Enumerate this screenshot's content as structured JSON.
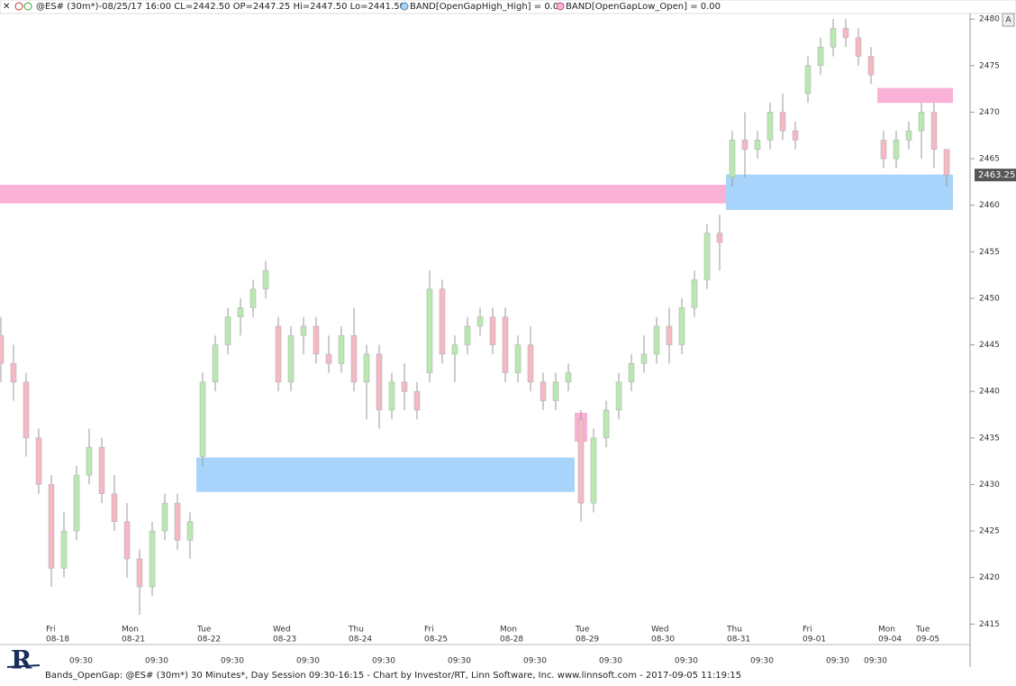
{
  "header": {
    "symbol": "@ES# (30m*)-08/25/17 16:00 CL=2442.50 OP=2447.25 Hi=2447.50 Lo=2441.50",
    "band_high": "BAND[OpenGapHigh_High] = 0.00",
    "band_low": "BAND[OpenGapLow_Open] = 0.00"
  },
  "axis_button": "A",
  "footer": "Bands_OpenGap: @ES# (30m*) 30 Minutes*, Day Session 09:30-16:15 - Chart by Investor/RT, Linn Software, Inc. www.linnsoft.com - 2017-09-05 11:19:15",
  "chart_data": {
    "type": "candlestick",
    "categories": [
      null,
      null,
      null,
      null,
      "08-18",
      null,
      null,
      null,
      null,
      null,
      "08-21",
      null,
      null,
      null,
      null,
      null,
      "08-22",
      null,
      null,
      null,
      null,
      null,
      "08-23",
      null,
      null,
      null,
      null,
      null,
      "08-24",
      null,
      null,
      null,
      null,
      null,
      "08-25",
      null,
      null,
      null,
      null,
      null,
      "08-28",
      null,
      null,
      null,
      null,
      null,
      "08-29",
      null,
      null,
      null,
      null,
      null,
      "08-30",
      null,
      null,
      null,
      null,
      null,
      "08-31",
      null,
      null,
      null,
      null,
      null,
      "09-01",
      null,
      null,
      null,
      null,
      null,
      "09-04",
      null,
      null,
      "09-05",
      null,
      null
    ],
    "weekdays": [
      null,
      null,
      null,
      null,
      "Fri",
      null,
      null,
      null,
      null,
      null,
      "Mon",
      null,
      null,
      null,
      null,
      null,
      "Tue",
      null,
      null,
      null,
      null,
      null,
      "Wed",
      null,
      null,
      null,
      null,
      null,
      "Thu",
      null,
      null,
      null,
      null,
      null,
      "Fri",
      null,
      null,
      null,
      null,
      null,
      "Mon",
      null,
      null,
      null,
      null,
      null,
      "Tue",
      null,
      null,
      null,
      null,
      null,
      "Wed",
      null,
      null,
      null,
      null,
      null,
      "Thu",
      null,
      null,
      null,
      null,
      null,
      "Fri",
      null,
      null,
      null,
      null,
      null,
      "Mon",
      null,
      null,
      "Tue",
      null,
      null
    ],
    "times": [
      null,
      null,
      null,
      null,
      null,
      null,
      "09:30",
      null,
      null,
      null,
      null,
      null,
      "09:30",
      null,
      null,
      null,
      null,
      null,
      "09:30",
      null,
      null,
      null,
      null,
      null,
      "09:30",
      null,
      null,
      null,
      null,
      null,
      "09:30",
      null,
      null,
      null,
      null,
      null,
      "09:30",
      null,
      null,
      null,
      null,
      null,
      "09:30",
      null,
      null,
      null,
      null,
      null,
      "09:30",
      null,
      null,
      null,
      null,
      null,
      "09:30",
      null,
      null,
      null,
      null,
      null,
      "09:30",
      null,
      null,
      null,
      null,
      null,
      "09:30",
      null,
      null,
      "09:30",
      null,
      null,
      null,
      null,
      null
    ],
    "open": [
      2446,
      2443,
      2441,
      2435,
      2430,
      2421,
      2425,
      2431,
      2434,
      2429,
      2426,
      2422,
      2419,
      2425,
      2428,
      2424,
      2433,
      2441,
      2445,
      2448,
      2449,
      2451,
      2447,
      2441,
      2446,
      2447,
      2444,
      2443,
      2446,
      2441,
      2444,
      2438,
      2441,
      2440,
      2442,
      2451,
      2444,
      2445,
      2447,
      2448,
      2448,
      2442,
      2445,
      2441,
      2439,
      2441,
      2437,
      2428,
      2435,
      2438,
      2441,
      2443,
      2444,
      2447,
      2445,
      2449,
      2452,
      2457,
      2463,
      2467,
      2466,
      2467,
      2470,
      2468,
      2472,
      2475,
      2477,
      2479,
      2478,
      2476,
      2467,
      2465,
      2467,
      2468,
      2470,
      2466
    ],
    "high": [
      2448,
      2445,
      2442,
      2436,
      2431,
      2427,
      2432,
      2436,
      2435,
      2431,
      2428,
      2423,
      2426,
      2429,
      2429,
      2427,
      2442,
      2446,
      2449,
      2450,
      2452,
      2454,
      2448,
      2447,
      2448,
      2448,
      2446,
      2447,
      2449,
      2445,
      2445,
      2442,
      2443,
      2441,
      2453,
      2452,
      2446,
      2448,
      2449,
      2449,
      2449,
      2446,
      2447,
      2442,
      2442,
      2443,
      2438,
      2436,
      2439,
      2442,
      2444,
      2446,
      2448,
      2449,
      2450,
      2453,
      2458,
      2459,
      2468,
      2470,
      2468,
      2471,
      2472,
      2469,
      2476,
      2478,
      2480,
      2480,
      2479,
      2477,
      2468,
      2468,
      2469,
      2471,
      2471,
      2466
    ],
    "low": [
      2441,
      2439,
      2433,
      2429,
      2419,
      2420,
      2424,
      2430,
      2428,
      2425,
      2420,
      2416,
      2418,
      2424,
      2423,
      2422,
      2432,
      2440,
      2444,
      2446,
      2448,
      2450,
      2440,
      2440,
      2444,
      2443,
      2442,
      2442,
      2440,
      2437,
      2436,
      2437,
      2438,
      2437,
      2441,
      2443,
      2441,
      2444,
      2446,
      2444,
      2441,
      2441,
      2440,
      2438,
      2438,
      2440,
      2426,
      2427,
      2434,
      2437,
      2440,
      2442,
      2443,
      2443,
      2444,
      2448,
      2451,
      2453,
      2462,
      2463,
      2465,
      2466,
      2467,
      2466,
      2471,
      2474,
      2476,
      2477,
      2475,
      2473,
      2464,
      2464,
      2466,
      2465,
      2464,
      2462
    ],
    "close": [
      2443,
      2441,
      2435,
      2430,
      2421,
      2425,
      2431,
      2434,
      2429,
      2426,
      2422,
      2419,
      2425,
      2428,
      2424,
      2426,
      2441,
      2445,
      2448,
      2449,
      2451,
      2453,
      2441,
      2446,
      2447,
      2444,
      2443,
      2446,
      2441,
      2444,
      2438,
      2441,
      2440,
      2438,
      2451,
      2444,
      2445,
      2447,
      2448,
      2445,
      2442,
      2445,
      2441,
      2439,
      2441,
      2442,
      2428,
      2435,
      2438,
      2441,
      2443,
      2444,
      2447,
      2445,
      2449,
      2452,
      2457,
      2456,
      2467,
      2466,
      2467,
      2470,
      2468,
      2467,
      2475,
      2477,
      2479,
      2478,
      2476,
      2474,
      2465,
      2467,
      2468,
      2470,
      2466,
      2463.25
    ],
    "up_color": "#b9e8b1",
    "down_color": "#f4b9c5",
    "bands": [
      {
        "color": "#f9b2d6",
        "from": 0,
        "to": 57,
        "low": 2460.2,
        "high": 2462.2
      },
      {
        "color": "#a8d4fb",
        "from": 16,
        "to": 45,
        "low": 2429.2,
        "high": 2432.9
      },
      {
        "color": "#f9b2d6",
        "from": 46,
        "to": 46,
        "low": 2434.6,
        "high": 2437.7
      },
      {
        "color": "#a8d4fb",
        "from": 58,
        "to": 75,
        "low": 2459.5,
        "high": 2463.3
      },
      {
        "color": "#f9b2d6",
        "from": 70,
        "to": 75,
        "low": 2471.0,
        "high": 2472.6
      }
    ],
    "ylim": [
      2412.8,
      2480.6
    ],
    "yticks": [
      2415,
      2420,
      2425,
      2430,
      2435,
      2440,
      2445,
      2450,
      2455,
      2460,
      2465,
      2470,
      2475,
      2480
    ]
  }
}
